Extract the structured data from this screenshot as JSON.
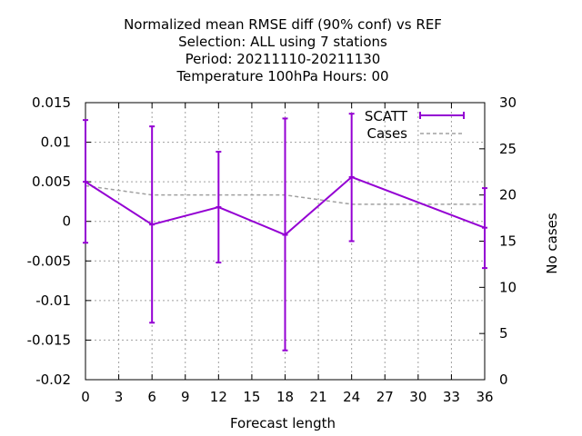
{
  "chart_data": {
    "type": "line",
    "title_lines": [
      "Normalized mean RMSE diff (90% conf) vs REF",
      "Selection: ALL using     7 stations",
      "Period: 20211110-20211130",
      "Temperature 100hPa   Hours:  00"
    ],
    "xlabel": "Forecast length",
    "ylabel": "",
    "y2label": "No cases",
    "xlim": [
      0,
      36
    ],
    "ylim": [
      -0.02,
      0.015
    ],
    "y2lim": [
      0,
      30
    ],
    "x_ticks": [
      0,
      3,
      6,
      9,
      12,
      15,
      18,
      21,
      24,
      27,
      30,
      33,
      36
    ],
    "x_tick_labels": [
      "0",
      "3",
      "6",
      "9",
      "12",
      "15",
      "18",
      "21",
      "24",
      "27",
      "30",
      "33",
      "36"
    ],
    "y_ticks": [
      0.015,
      0.01,
      0.005,
      0,
      -0.005,
      -0.01,
      -0.015,
      -0.02
    ],
    "y_tick_labels": [
      "0.015",
      "0.01",
      "0.005",
      "0",
      "-0.005",
      "-0.01",
      "-0.015",
      "-0.02"
    ],
    "y2_ticks": [
      30,
      25,
      20,
      15,
      10,
      5,
      0
    ],
    "y2_tick_labels": [
      "30",
      "25",
      "20",
      "15",
      "10",
      "5",
      "0"
    ],
    "grid": true,
    "legend_position": "top-right",
    "series": [
      {
        "name": "SCATT",
        "axis": "left",
        "style": "errorbars",
        "color": "#9400d3",
        "x": [
          0,
          6,
          12,
          18,
          24,
          36
        ],
        "y": [
          0.005,
          -0.0004,
          0.0018,
          -0.0017,
          0.0056,
          -0.0008
        ],
        "lower": [
          -0.0027,
          -0.0128,
          -0.0052,
          -0.0163,
          -0.0025,
          -0.0059
        ],
        "upper": [
          0.0128,
          0.012,
          0.0088,
          0.013,
          0.0136,
          0.0042
        ]
      },
      {
        "name": "Cases",
        "axis": "right",
        "style": "dashed",
        "color": "#a0a0a0",
        "x": [
          0,
          6,
          12,
          18,
          24,
          36
        ],
        "y": [
          21,
          20,
          20,
          20,
          19,
          19
        ]
      }
    ]
  }
}
